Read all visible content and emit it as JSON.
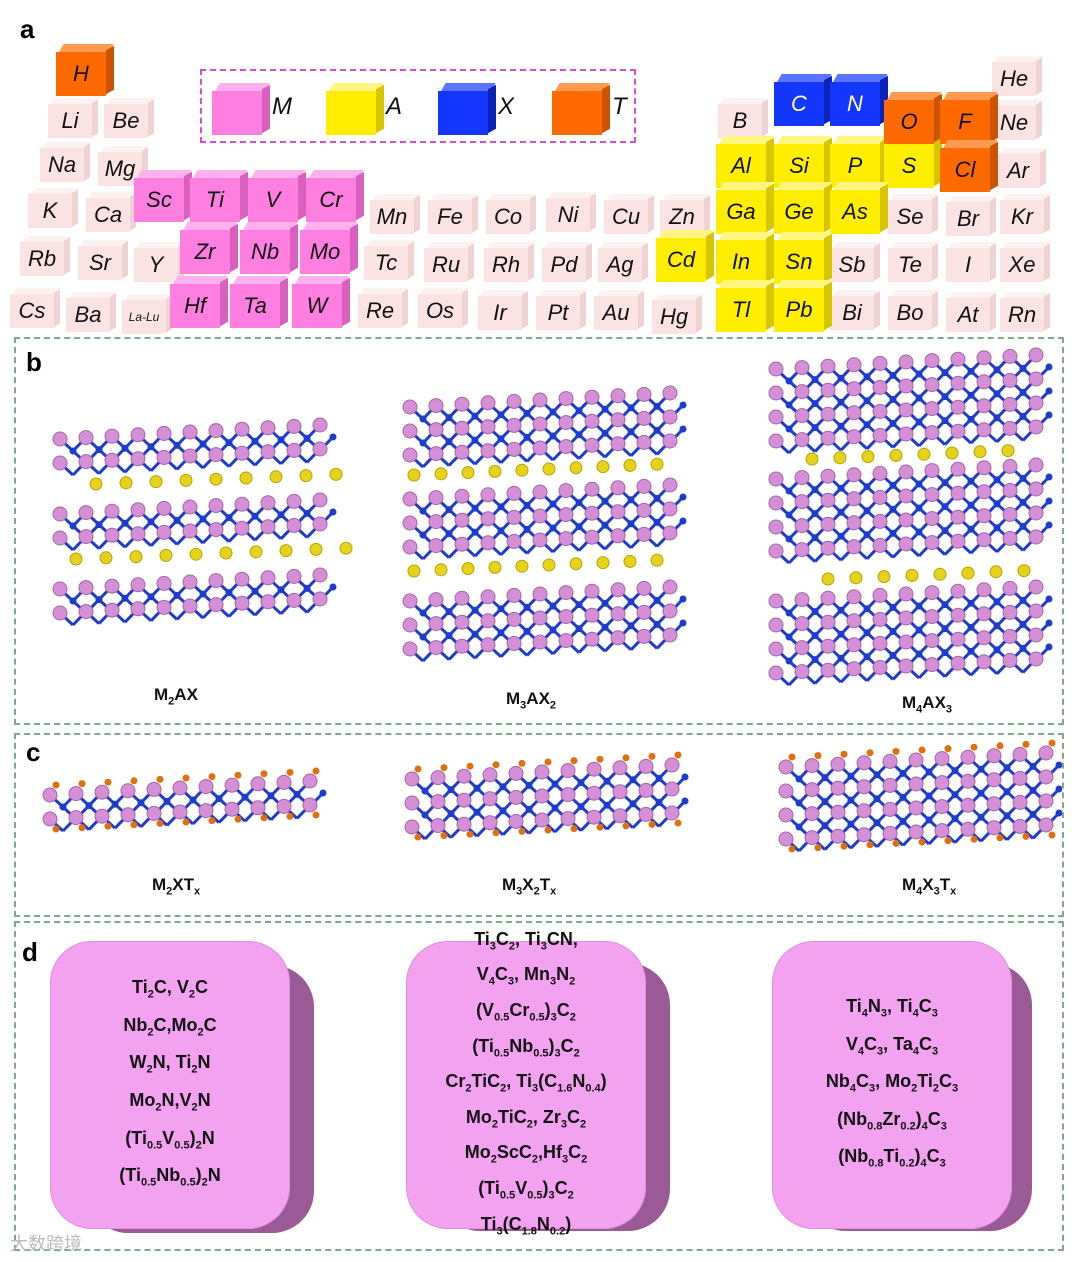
{
  "panels": {
    "a": "a",
    "b": "b",
    "c": "c",
    "d": "d"
  },
  "legend": [
    {
      "key": "m",
      "label": "M",
      "color": "#ff7fe0"
    },
    {
      "key": "a",
      "label": "A",
      "color": "#ffee00"
    },
    {
      "key": "x",
      "label": "X",
      "color": "#1436ff"
    },
    {
      "key": "t",
      "label": "T",
      "color": "#ff6a00"
    }
  ],
  "elements": {
    "plain": [
      "Li",
      "Be",
      "Na",
      "Mg",
      "K",
      "Ca",
      "Rb",
      "Sr",
      "Y",
      "Cs",
      "Ba",
      "La-Lu",
      "Mn",
      "Fe",
      "Co",
      "Ni",
      "Cu",
      "Zn",
      "Tc",
      "Ru",
      "Rh",
      "Pd",
      "Ag",
      "Re",
      "Os",
      "Ir",
      "Pt",
      "Au",
      "Hg",
      "B",
      "Se",
      "Br",
      "Kr",
      "Sb",
      "Te",
      "I",
      "Xe",
      "Bi",
      "Bo",
      "At",
      "Rn",
      "He",
      "Ne",
      "Ar"
    ],
    "m": [
      "Sc",
      "Ti",
      "V",
      "Cr",
      "Zr",
      "Nb",
      "Mo",
      "Hf",
      "Ta",
      "W"
    ],
    "a": [
      "Al",
      "Si",
      "P",
      "S",
      "Ga",
      "Ge",
      "As",
      "Cd",
      "In",
      "Sn",
      "Tl",
      "Pb"
    ],
    "x": [
      "C",
      "N"
    ],
    "t": [
      "H",
      "O",
      "F",
      "Cl"
    ]
  },
  "structures_b": [
    "M2AX",
    "M3AX2",
    "M4AX3"
  ],
  "structures_c": [
    "M2XTx",
    "M3X2Tx",
    "M4X3Tx"
  ],
  "mxene_lists": [
    [
      "Ti2C, V2C",
      "Nb2C,Mo2C",
      "W2N, Ti2N",
      "Mo2N,V2N",
      "(Ti0.5V0.5)2N",
      "(Ti0.5Nb0.5)2N"
    ],
    [
      "Ti3C2, Ti3CN,",
      "V4C3, Mn3N2",
      "(V0.5Cr0.5)3C2",
      "(Ti0.5Nb0.5)3C2",
      "Cr2TiC2, Ti3(C1.6N0.4)",
      "Mo2TiC2, Zr3C2",
      "Mo2ScC2,Hf3C2",
      "(Ti0.5V0.5)3C2",
      "Ti3(C1.8N0.2)"
    ],
    [
      "Ti4N3, Ti4C3",
      "V4C3, Ta4C3",
      "Nb4C3, Mo2Ti2C3",
      "(Nb0.8Zr0.2)4C3",
      "(Nb0.8Ti0.2)4C3"
    ]
  ],
  "colors": {
    "metal": "#d48fd6",
    "x_atom": "#1e3ccc",
    "a_atom": "#e6d21a",
    "t_atom": "#e0700f",
    "border": "#7fa98b"
  },
  "watermark": "大数跨境"
}
